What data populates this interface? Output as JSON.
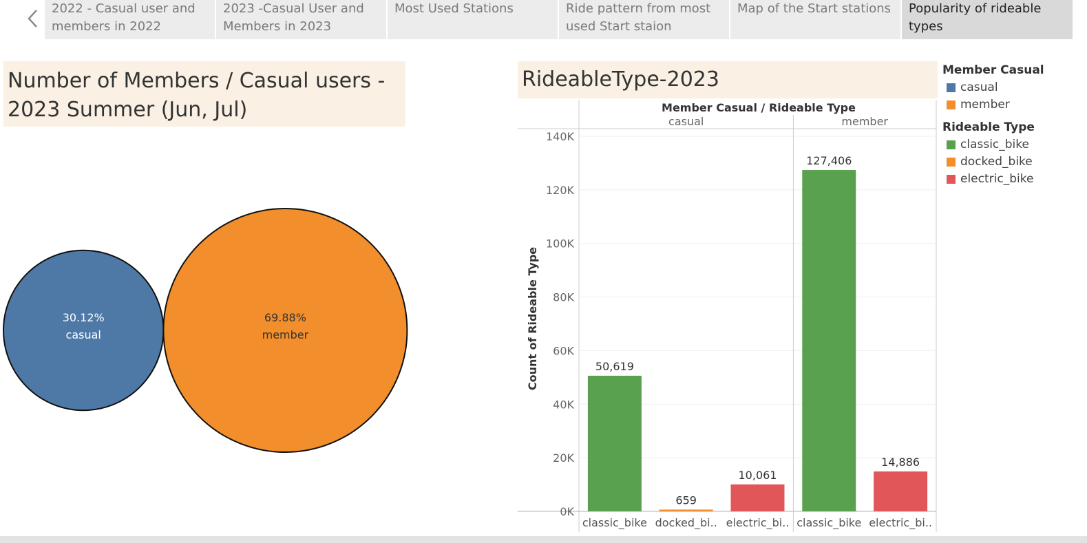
{
  "tabs": [
    {
      "label_line1": "2022 - Casual user and",
      "label_line2": "members in 2022"
    },
    {
      "label_line1": "2023 -Casual User and",
      "label_line2": "Members in 2023"
    },
    {
      "label_line1": "Most Used Stations",
      "label_line2": ""
    },
    {
      "label_line1": "Ride pattern from most",
      "label_line2": "used Start staion"
    },
    {
      "label_line1": "Map of the Start stations",
      "label_line2": ""
    },
    {
      "label_line1": "Popularity of rideable",
      "label_line2": "types"
    }
  ],
  "active_tab": 5,
  "left_panel": {
    "title_line1": "Number of Members / Casual users -",
    "title_line2": "2023 Summer (Jun, Jul)"
  },
  "right_panel": {
    "title": "RideableType-2023"
  },
  "legend": {
    "member_casual_title": "Member Casual",
    "member_casual_items": [
      {
        "label": "casual",
        "color": "#4e79a7"
      },
      {
        "label": "member",
        "color": "#f28e2b"
      }
    ],
    "rideable_title": "Rideable Type",
    "rideable_items": [
      {
        "label": "classic_bike",
        "color": "#59a14f"
      },
      {
        "label": "docked_bike",
        "color": "#f28e2b"
      },
      {
        "label": "electric_bike",
        "color": "#e15759"
      }
    ]
  },
  "chart_data": [
    {
      "type": "bubble",
      "items": [
        {
          "label": "casual",
          "percent": "30.12%",
          "share": 30.12,
          "color": "#4e79a7",
          "text_color": "#ffffff"
        },
        {
          "label": "member",
          "percent": "69.88%",
          "share": 69.88,
          "color": "#f28e2b",
          "text_color": "#333333"
        }
      ]
    },
    {
      "type": "bar",
      "header": "Member Casual  /  Rideable Type",
      "ylabel": "Count of Rideable Type",
      "ylim": [
        0,
        140000
      ],
      "yticks": [
        "0K",
        "20K",
        "40K",
        "60K",
        "80K",
        "100K",
        "120K",
        "140K"
      ],
      "groups": [
        {
          "name": "casual",
          "bars": [
            {
              "category": "classic_bike",
              "tick_label": "classic_bike",
              "value": 50619,
              "value_label": "50,619",
              "color": "#59a14f"
            },
            {
              "category": "docked_bike",
              "tick_label": "docked_bi..",
              "value": 659,
              "value_label": "659",
              "color": "#f28e2b"
            },
            {
              "category": "electric_bike",
              "tick_label": "electric_bi..",
              "value": 10061,
              "value_label": "10,061",
              "color": "#e15759"
            }
          ]
        },
        {
          "name": "member",
          "bars": [
            {
              "category": "classic_bike",
              "tick_label": "classic_bike",
              "value": 127406,
              "value_label": "127,406",
              "color": "#59a14f"
            },
            {
              "category": "electric_bike",
              "tick_label": "electric_bi..",
              "value": 14886,
              "value_label": "14,886",
              "color": "#e15759"
            }
          ]
        }
      ]
    }
  ]
}
